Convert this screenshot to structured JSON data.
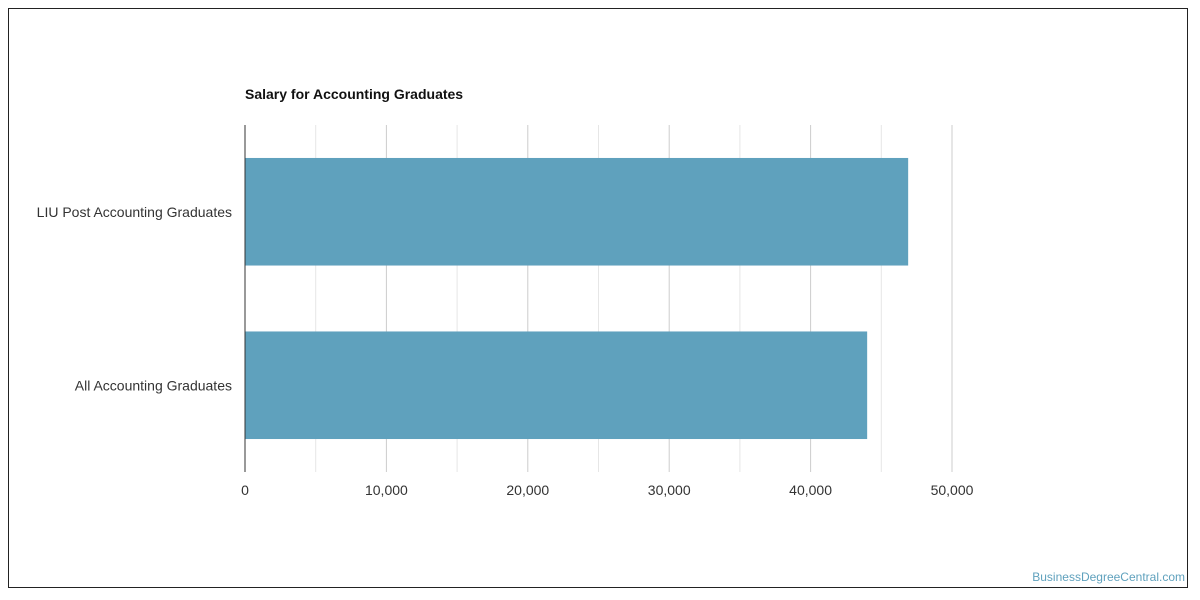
{
  "chart_data": {
    "type": "bar",
    "orientation": "horizontal",
    "title": "Salary for Accounting Graduates",
    "categories": [
      "LIU Post Accounting Graduates",
      "All Accounting Graduates"
    ],
    "values": [
      46900,
      44000
    ],
    "xlabel": "",
    "ylabel": "",
    "xlim": [
      0,
      50000
    ],
    "ticks": [
      0,
      10000,
      20000,
      30000,
      40000,
      50000
    ],
    "tick_labels": [
      "0",
      "10,000",
      "20,000",
      "30,000",
      "40,000",
      "50,000"
    ],
    "grid": true,
    "legend": "none",
    "bar_color": "#5fa1bd"
  },
  "watermark": "BusinessDegreeCentral.com"
}
